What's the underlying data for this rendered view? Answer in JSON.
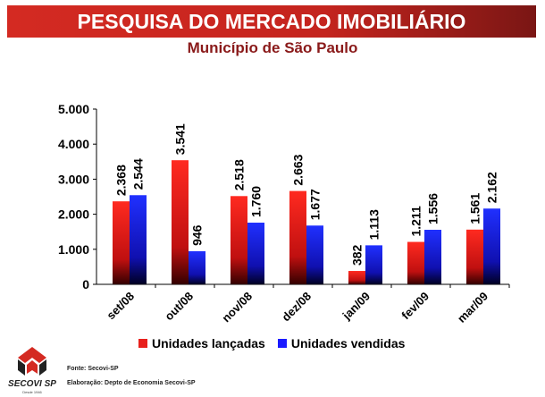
{
  "header": {
    "title": "PESQUISA DO MERCADO IMOBILIÁRIO",
    "subtitle": "Município de São Paulo"
  },
  "chart_data": {
    "type": "bar",
    "categories": [
      "set/08",
      "out/08",
      "nov/08",
      "dez/08",
      "jan/09",
      "fev/09",
      "mar/09"
    ],
    "series": [
      {
        "name": "Unidades lançadas",
        "color": "#e8201c",
        "values": [
          2368,
          3541,
          2518,
          2663,
          382,
          1211,
          1561
        ],
        "labels": [
          "2.368",
          "3.541",
          "2.518",
          "2.663",
          "382",
          "1.211",
          "1.561"
        ]
      },
      {
        "name": "Unidades vendidas",
        "color": "#1a1aff",
        "values": [
          2544,
          946,
          1760,
          1677,
          1113,
          1556,
          2162
        ],
        "labels": [
          "2.544",
          "946",
          "1.760",
          "1.677",
          "1.113",
          "1.556",
          "2.162"
        ]
      }
    ],
    "yticks": [
      "0",
      "1.000",
      "2.000",
      "3.000",
      "4.000",
      "5.000"
    ],
    "ylim": [
      0,
      5000
    ],
    "grid": false,
    "legend": "bottom"
  },
  "footer": {
    "source": "Fonte: Secovi-SP",
    "elaboration": "Elaboração: Depto de Economia Secovi-SP",
    "logo_text": "SECOVI SP",
    "logo_since": "Desde 1946"
  }
}
